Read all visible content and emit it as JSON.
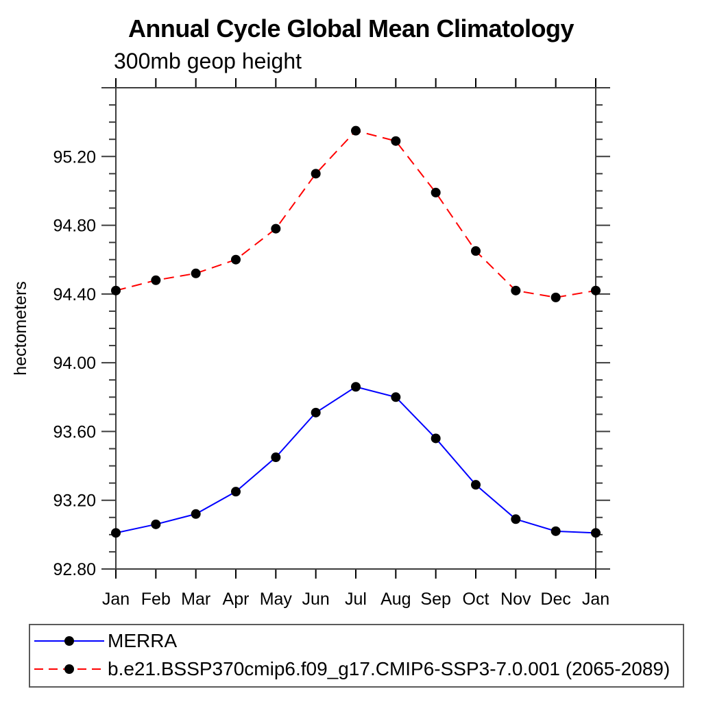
{
  "page": {
    "background": "#ffffff"
  },
  "chart_data": {
    "type": "line",
    "title": "Annual Cycle Global Mean Climatology",
    "subtitle": "300mb geop height",
    "xlabel": "",
    "ylabel": "hectometers",
    "x_categories": [
      "Jan",
      "Feb",
      "Mar",
      "Apr",
      "May",
      "Jun",
      "Jul",
      "Aug",
      "Sep",
      "Oct",
      "Nov",
      "Dec",
      "Jan"
    ],
    "ylim": [
      92.8,
      95.6
    ],
    "ytick_major_step": 0.4,
    "ytick_minor_step": 0.1,
    "ytick_labels": [
      "95.20",
      "94.80",
      "94.40",
      "94.00",
      "93.60",
      "93.20",
      "92.80"
    ],
    "ytick_label_values": [
      95.2,
      94.8,
      94.4,
      94.0,
      93.6,
      93.2,
      92.8
    ],
    "grid": false,
    "axis_color": "#3c3c3c",
    "month_tick_color": "#000000",
    "marker": "circle",
    "marker_color": "#000000",
    "legend_position": "bottom-left-box",
    "series": [
      {
        "name": "MERRA",
        "color": "#0000ff",
        "line_style": "solid",
        "values": [
          93.01,
          93.06,
          93.12,
          93.25,
          93.45,
          93.71,
          93.86,
          93.8,
          93.56,
          93.29,
          93.09,
          93.02,
          93.01
        ]
      },
      {
        "name": "b.e21.BSSP370cmip6.f09_g17.CMIP6-SSP3-7.0.001 (2065-2089)",
        "color": "#ff0000",
        "line_style": "dashed",
        "values": [
          94.42,
          94.48,
          94.52,
          94.6,
          94.78,
          95.1,
          95.35,
          95.29,
          94.99,
          94.65,
          94.42,
          94.38,
          94.42
        ]
      }
    ]
  }
}
